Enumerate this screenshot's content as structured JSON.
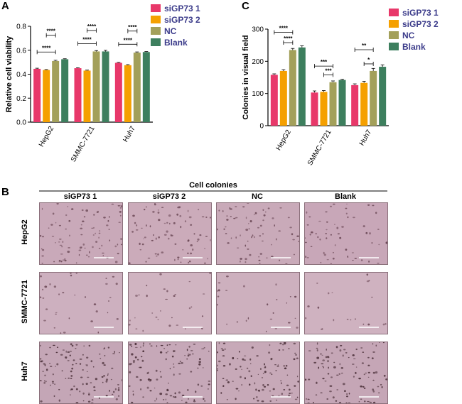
{
  "panels": {
    "a": "A",
    "b": "B",
    "c": "C"
  },
  "colors": {
    "siGP73_1": "#e8386a",
    "siGP73_2": "#f5a000",
    "NC": "#a3a05a",
    "Blank": "#3d7f5e",
    "legend_text": "#3b3b8a"
  },
  "chart_data": [
    {
      "type": "bar",
      "panel": "A",
      "ylabel": "Relative cell viability",
      "xlabel": "",
      "categories": [
        "HepG2",
        "SMMC-7721",
        "Huh7"
      ],
      "ylim": [
        0,
        0.8
      ],
      "yticks": [
        "0.0",
        "0.2",
        "0.4",
        "0.6",
        "0.8"
      ],
      "legend": "top-right",
      "series": [
        {
          "name": "siGP73 1",
          "values": [
            0.445,
            0.45,
            0.495
          ],
          "err": [
            0.005,
            0.004,
            0.004
          ]
        },
        {
          "name": "siGP73 2",
          "values": [
            0.435,
            0.43,
            0.475
          ],
          "err": [
            0.004,
            0.004,
            0.005
          ]
        },
        {
          "name": "NC",
          "values": [
            0.51,
            0.59,
            0.58
          ],
          "err": [
            0.006,
            0.007,
            0.006
          ]
        },
        {
          "name": "Blank",
          "values": [
            0.525,
            0.59,
            0.585
          ],
          "err": [
            0.004,
            0.009,
            0.004
          ]
        }
      ],
      "significance": [
        {
          "cat": 0,
          "from": 0,
          "to": 2,
          "label": "****",
          "y": 0.585
        },
        {
          "cat": 0,
          "from": 1,
          "to": 2,
          "label": "****",
          "y": 0.725
        },
        {
          "cat": 1,
          "from": 0,
          "to": 2,
          "label": "****",
          "y": 0.655
        },
        {
          "cat": 1,
          "from": 1,
          "to": 2,
          "label": "****",
          "y": 0.765
        },
        {
          "cat": 2,
          "from": 0,
          "to": 2,
          "label": "****",
          "y": 0.65
        },
        {
          "cat": 2,
          "from": 1,
          "to": 2,
          "label": "****",
          "y": 0.76
        }
      ]
    },
    {
      "type": "bar",
      "panel": "C",
      "ylabel": "Colonies in visual field",
      "xlabel": "",
      "categories": [
        "HepG2",
        "SMMC-7721",
        "Huh7"
      ],
      "ylim": [
        0,
        300
      ],
      "yticks": [
        "0",
        "100",
        "200",
        "300"
      ],
      "legend": "top-right",
      "series": [
        {
          "name": "siGP73 1",
          "values": [
            158,
            103,
            126
          ],
          "err": [
            3,
            5,
            4
          ]
        },
        {
          "name": "siGP73 2",
          "values": [
            170,
            105,
            133
          ],
          "err": [
            4,
            4,
            5
          ]
        },
        {
          "name": "NC",
          "values": [
            235,
            135,
            170
          ],
          "err": [
            5,
            4,
            8
          ]
        },
        {
          "name": "Blank",
          "values": [
            243,
            142,
            183
          ],
          "err": [
            5,
            2,
            6
          ]
        }
      ],
      "significance": [
        {
          "cat": 0,
          "from": 0,
          "to": 2,
          "label": "****",
          "y": 290
        },
        {
          "cat": 0,
          "from": 1,
          "to": 2,
          "label": "****",
          "y": 258
        },
        {
          "cat": 1,
          "from": 0,
          "to": 2,
          "label": "***",
          "y": 185
        },
        {
          "cat": 1,
          "from": 1,
          "to": 2,
          "label": "***",
          "y": 158
        },
        {
          "cat": 2,
          "from": 0,
          "to": 2,
          "label": "**",
          "y": 236
        },
        {
          "cat": 2,
          "from": 1,
          "to": 2,
          "label": "*",
          "y": 192
        }
      ]
    }
  ],
  "panel_b": {
    "title": "Cell colonies",
    "columns": [
      "siGP73 1",
      "siGP73 2",
      "NC",
      "Blank"
    ],
    "rows": [
      "HepG2",
      "SMMC-7721",
      "Huh7"
    ]
  }
}
